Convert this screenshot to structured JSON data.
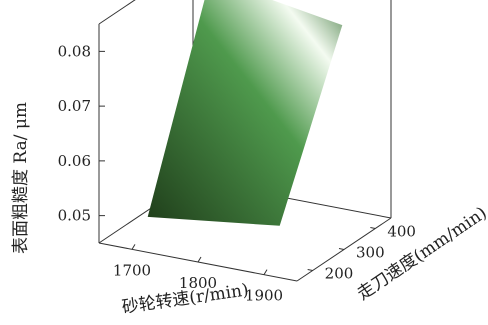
{
  "chart_data": {
    "type": "surface",
    "title": "",
    "xlabel": "砂轮转速(r/min)",
    "ylabel": "走刀速度(mm/min)",
    "zlabel": "表面粗糙度 Ra/ μm",
    "xlim": [
      1650,
      1950
    ],
    "ylim": [
      150,
      450
    ],
    "zlim": [
      0.045,
      0.085
    ],
    "x_ticks": [
      1700,
      1800,
      1900
    ],
    "y_ticks": [
      200,
      300,
      400
    ],
    "z_ticks": [
      0.05,
      0.06,
      0.07,
      0.08
    ],
    "x_tick_labels": [
      "1700",
      "1800",
      "1900"
    ],
    "y_tick_labels": [
      "200",
      "300",
      "400"
    ],
    "z_tick_labels": [
      "0.05",
      "0.06",
      "0.07",
      "0.08"
    ],
    "surface_corners": [
      {
        "x": 1700,
        "y": 200,
        "z": 0.049
      },
      {
        "x": 1900,
        "y": 200,
        "z": 0.052
      },
      {
        "x": 1900,
        "y": 400,
        "z": 0.081
      },
      {
        "x": 1700,
        "y": 400,
        "z": 0.085
      }
    ],
    "colors": {
      "surface_dark": "#1f3d1a",
      "surface_mid": "#4f9a4d",
      "surface_light": "#f4fbf1",
      "box": "#333333"
    },
    "grid": false
  }
}
